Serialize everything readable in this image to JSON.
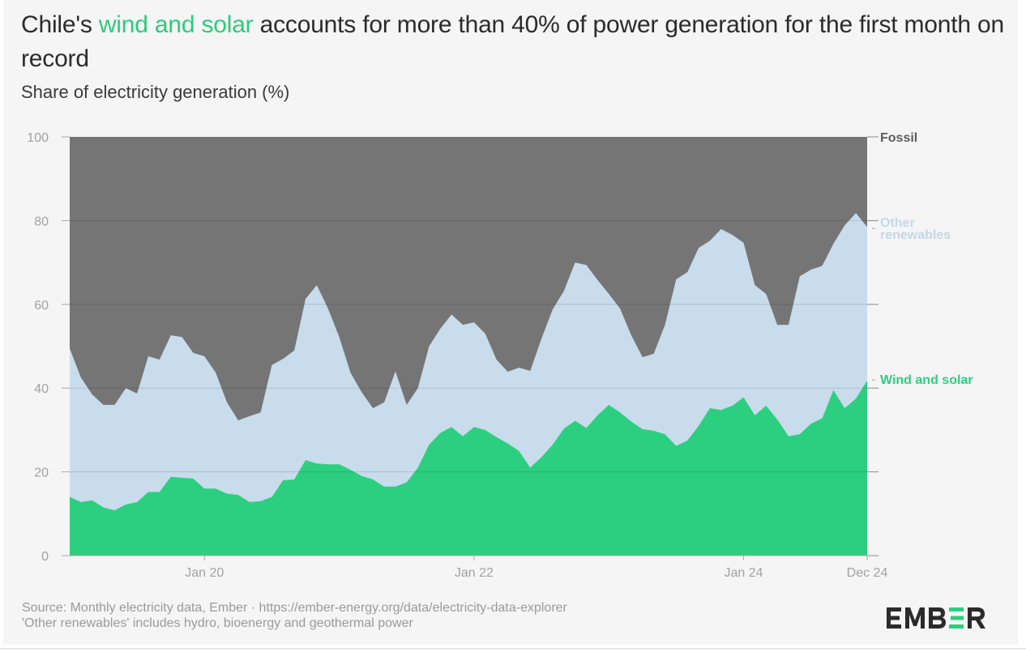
{
  "header": {
    "title_pre": "Chile's ",
    "title_highlight": "wind and solar",
    "title_post": " accounts for more than 40% of power generation for the first month on record",
    "subtitle": "Share of electricity generation (%)"
  },
  "footer": {
    "source": "Source: Monthly electricity data, Ember · https://ember-energy.org/data/electricity-data-explorer",
    "note": "'Other renewables' includes hydro, bioenergy and geothermal power",
    "logo_text": "EMBER"
  },
  "colors": {
    "fossil": "#757575",
    "other_renewables": "#c8dceb",
    "wind_solar": "#2ccf80",
    "highlight": "#2ccc7c",
    "other_label": "#c3d7e8",
    "fossil_label": "#5c5c5c"
  },
  "chart_data": {
    "type": "area",
    "stacked": true,
    "title": "Chile's wind and solar accounts for more than 40% of power generation for the first month on record",
    "ylabel": "Share of electricity generation (%)",
    "xlabel": "",
    "ylim": [
      0,
      100
    ],
    "yticks": [
      "0",
      "20",
      "40",
      "60",
      "80",
      "100"
    ],
    "ytick_values": [
      0,
      20,
      40,
      60,
      80,
      100
    ],
    "x_start": "Jan 2019",
    "x_end": "Dec 2024",
    "xtick_labels": [
      "Jan 20",
      "Jan 22",
      "Jan 24",
      "Dec 24"
    ],
    "xtick_month_index": [
      12,
      36,
      60,
      71
    ],
    "grid": true,
    "legend_placement": "right (inline labels at series ends)",
    "series": [
      {
        "name": "Wind and solar",
        "key": "wind_solar",
        "values": [
          14.0,
          12.8,
          13.2,
          11.5,
          10.8,
          12.2,
          12.8,
          15.2,
          15.2,
          18.8,
          18.6,
          18.4,
          16.0,
          16.0,
          14.8,
          14.5,
          12.8,
          13.0,
          14.0,
          18.0,
          18.2,
          22.8,
          22.0,
          21.8,
          21.8,
          20.5,
          19.0,
          18.2,
          16.5,
          16.5,
          17.5,
          21.0,
          26.5,
          29.3,
          30.7,
          28.5,
          30.7,
          30.0,
          28.3,
          26.8,
          25.0,
          21.0,
          23.5,
          26.5,
          30.3,
          32.2,
          30.5,
          33.5,
          36.0,
          34.2,
          32.0,
          30.2,
          29.8,
          29.0,
          26.2,
          27.5,
          31.0,
          35.2,
          34.8,
          35.8,
          37.8,
          33.5,
          35.8,
          32.5,
          28.5,
          29.0,
          31.5,
          32.8,
          39.5,
          35.2,
          37.5,
          41.8
        ]
      },
      {
        "name": "Other renewables",
        "key": "other_renewables",
        "values": [
          35.5,
          29.7,
          25.3,
          24.5,
          25.2,
          27.8,
          25.9,
          32.4,
          31.6,
          33.8,
          33.6,
          30.0,
          31.6,
          27.7,
          21.8,
          17.8,
          20.5,
          21.2,
          31.5,
          29.0,
          30.8,
          38.5,
          42.6,
          37.2,
          30.4,
          23.2,
          20.0,
          17.0,
          20.1,
          27.5,
          18.5,
          19.0,
          23.5,
          24.9,
          26.9,
          26.6,
          25.0,
          23.0,
          18.5,
          17.1,
          19.9,
          23.1,
          28.3,
          32.3,
          32.9,
          37.8,
          38.9,
          32.3,
          26.5,
          24.8,
          20.6,
          17.2,
          18.4,
          26.1,
          39.8,
          40.2,
          42.5,
          40.0,
          43.2,
          40.8,
          36.9,
          31.1,
          26.7,
          22.6,
          26.6,
          37.7,
          36.8,
          36.4,
          35.0,
          43.7,
          44.3,
          36.7
        ]
      },
      {
        "name": "Fossil",
        "key": "fossil",
        "values": "remainder to 100"
      }
    ],
    "series_labels": {
      "fossil": "Fossil",
      "other_line1": "Other",
      "other_line2": "renewables",
      "wind_solar": "Wind and solar"
    }
  }
}
